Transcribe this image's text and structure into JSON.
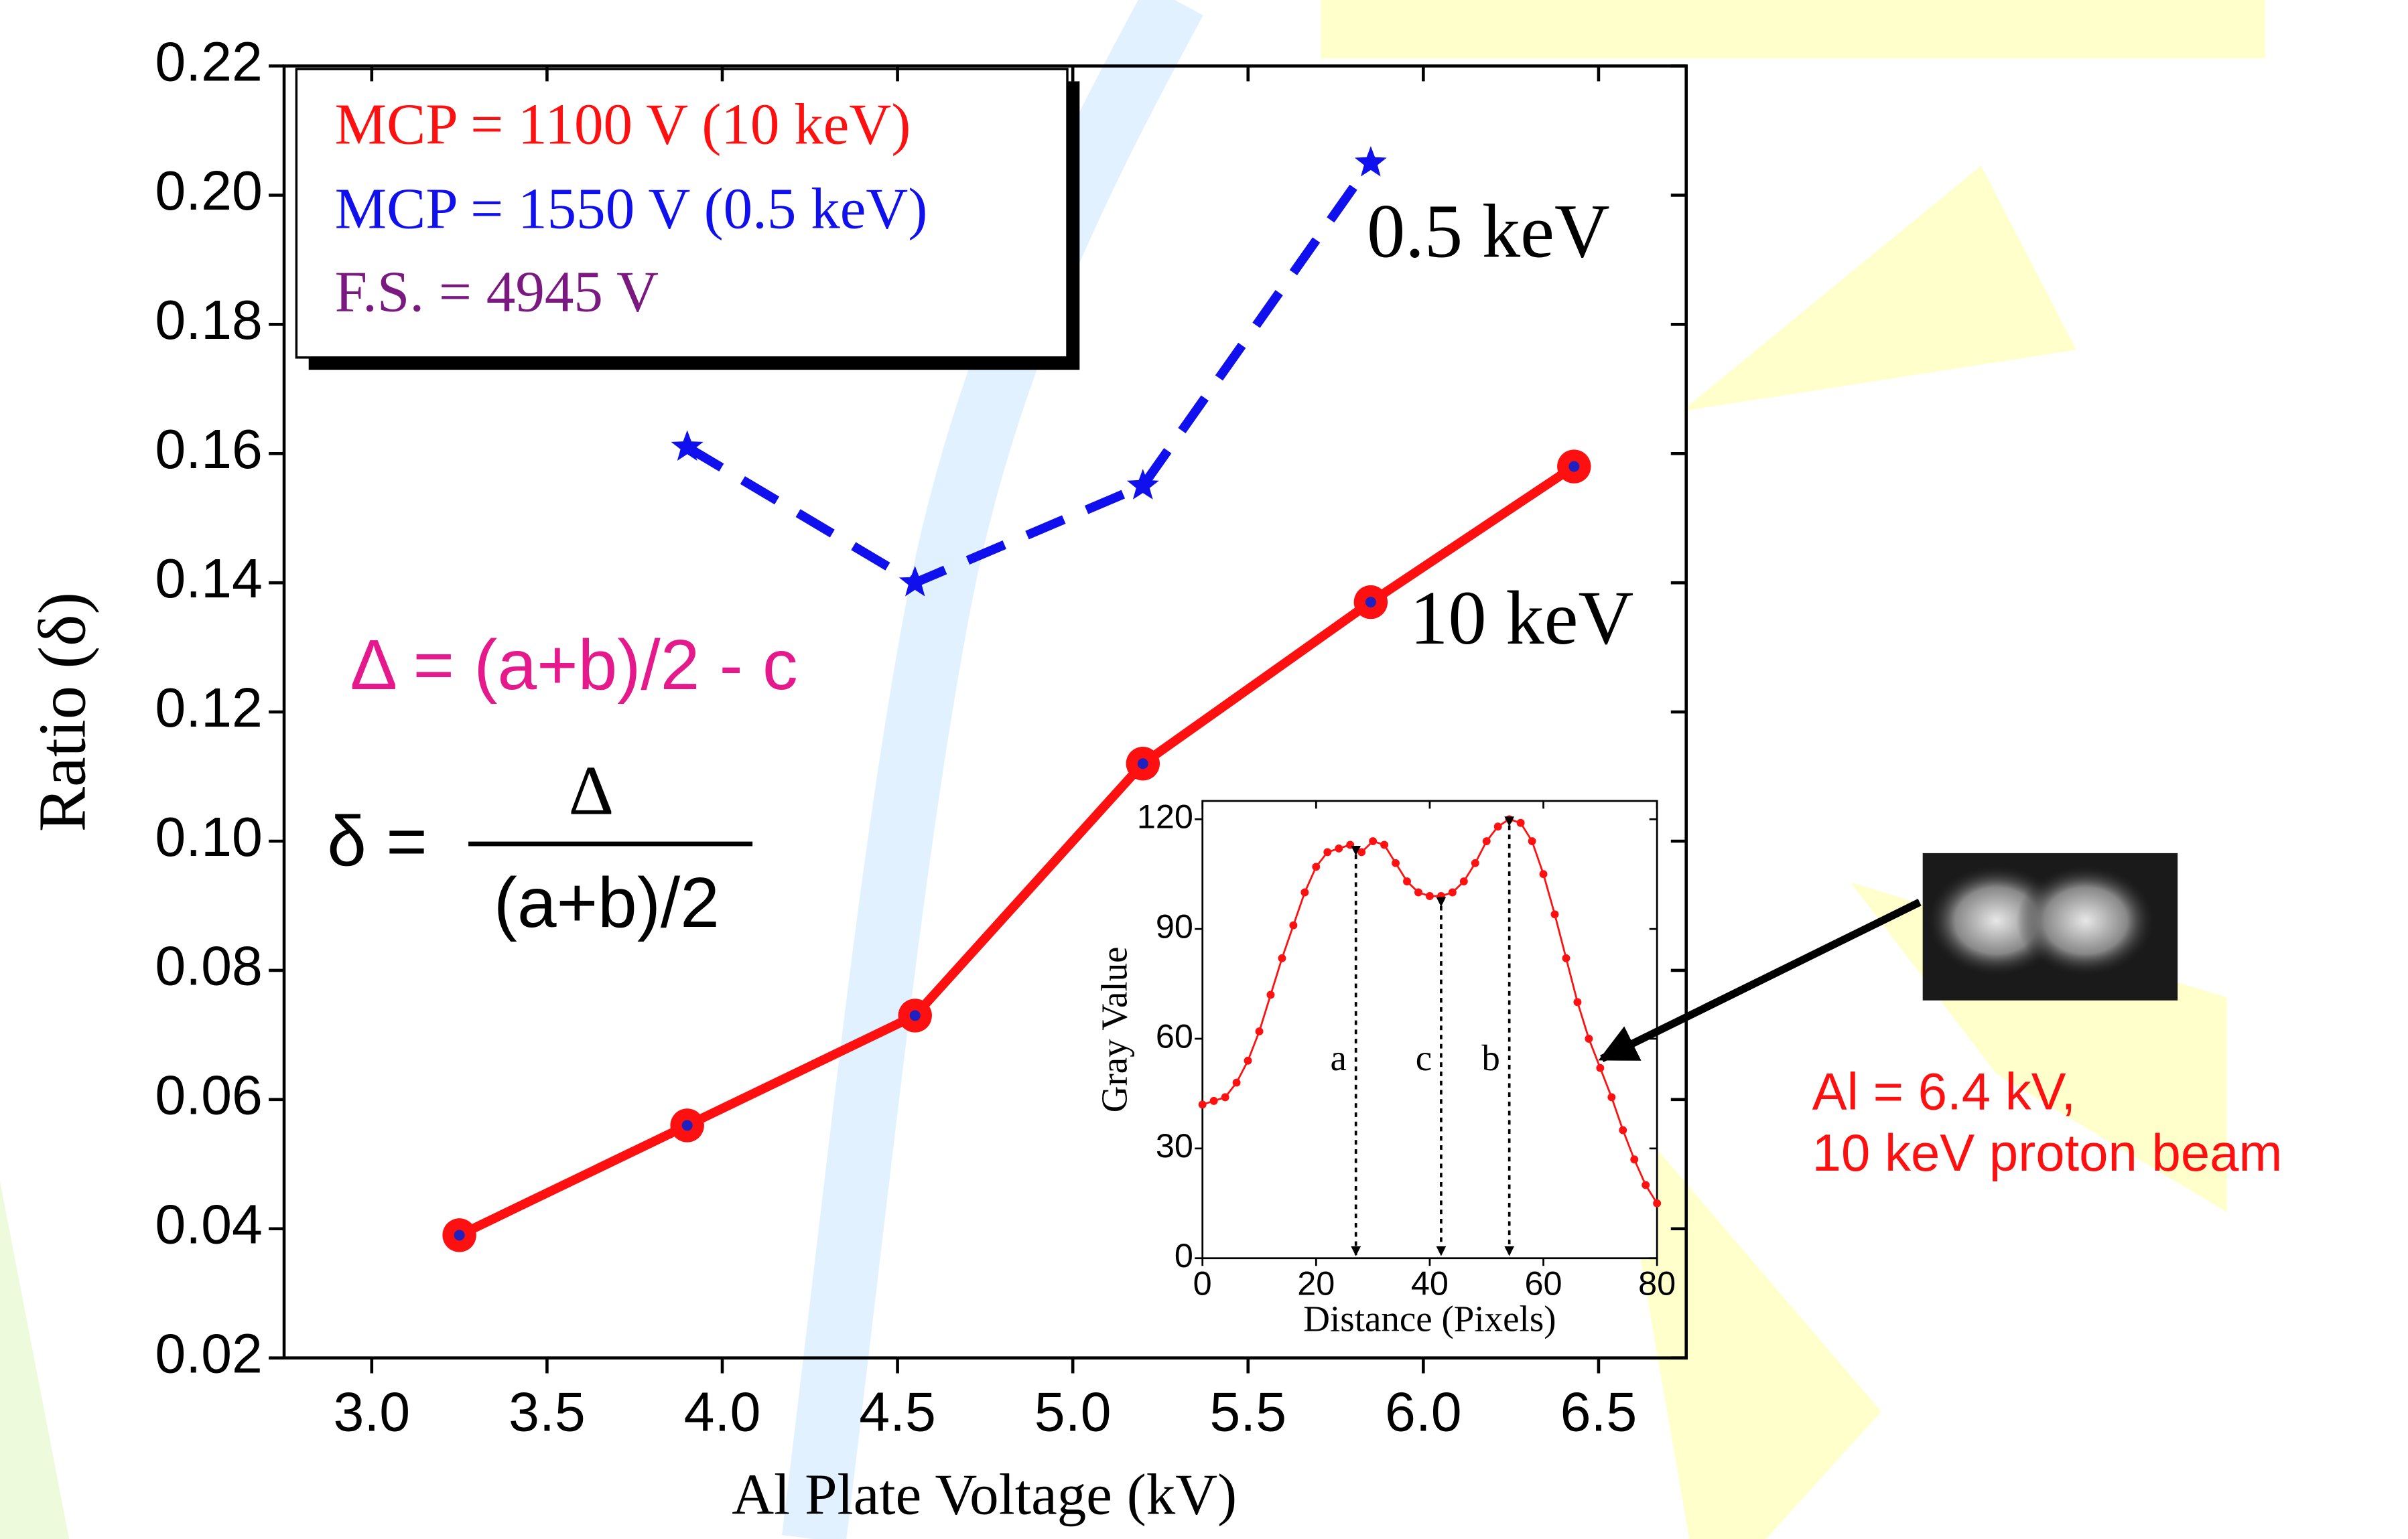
{
  "chart_data": [
    {
      "type": "line",
      "x_label": "Al Plate Voltage (kV)",
      "y_label": "Ratio (δ)",
      "xlim": [
        2.75,
        6.75
      ],
      "xticks": [
        {
          "value": 3,
          "label": "3.0"
        },
        3.5,
        {
          "value": 4,
          "label": "4.0"
        },
        4.5,
        {
          "value": 5,
          "label": "5.0"
        },
        5.5,
        {
          "value": 6,
          "label": "6.0"
        },
        6.5
      ],
      "ylim": [
        0.02,
        0.22
      ],
      "yticks": [
        0.02,
        0.04,
        0.06,
        0.08,
        {
          "value": 0.1,
          "label": "0.10"
        },
        0.12,
        0.14,
        0.16,
        0.18,
        {
          "value": 0.2,
          "label": "0.20"
        },
        0.22
      ],
      "series": [
        {
          "name": "10 keV",
          "color": "#ff1010",
          "line_style": "solid",
          "marker": "circle",
          "x": [
            3.25,
            3.9,
            4.55,
            5.2,
            5.85,
            6.43
          ],
          "values": [
            0.039,
            0.056,
            0.073,
            0.112,
            0.137,
            0.158
          ]
        },
        {
          "name": "0.5 keV",
          "color": "#1010ee",
          "line_style": "dashed",
          "marker": "star",
          "x": [
            3.9,
            4.55,
            5.2,
            5.85
          ],
          "values": [
            0.161,
            0.14,
            0.155,
            0.205
          ]
        }
      ],
      "annotations": {
        "legend_lines": [
          "MCP = 1100 V (10 keV)",
          "MCP = 1550 V (0.5 keV)",
          "F.S. = 4945 V"
        ],
        "formula": "Δ = (a+b)/2 - c",
        "ratio_lhs": "δ =",
        "ratio_numerator": "Δ",
        "ratio_denominator": "(a+b)/2"
      }
    },
    {
      "type": "line",
      "x_label": "Distance (Pixels)",
      "y_label": "Gray Value",
      "xlim": [
        0,
        80
      ],
      "xticks": [
        0,
        20,
        40,
        60,
        80
      ],
      "ylim": [
        0,
        125
      ],
      "yticks": [
        0,
        30,
        60,
        90,
        120
      ],
      "x": [
        0,
        2,
        4,
        6,
        8,
        10,
        12,
        14,
        16,
        18,
        20,
        22,
        24,
        26,
        28,
        30,
        32,
        34,
        36,
        38,
        40,
        42,
        44,
        46,
        48,
        50,
        52,
        54,
        56,
        58,
        60,
        62,
        64,
        66,
        68,
        70,
        72,
        74,
        76,
        78,
        80
      ],
      "series": [
        {
          "color": "#ff1010",
          "marker": "circle",
          "values": [
            42,
            43,
            44,
            48,
            54,
            62,
            72,
            82,
            91,
            100,
            107,
            111,
            112,
            113,
            111,
            114,
            113,
            108,
            103,
            100,
            99,
            99,
            100,
            103,
            108,
            114,
            118,
            120,
            119,
            114,
            105,
            94,
            82,
            70,
            60,
            52,
            44,
            35,
            27,
            20,
            15
          ]
        }
      ],
      "arrows": [
        {
          "label": "a",
          "x": 27,
          "y": 112
        },
        {
          "label": "c",
          "x": 42,
          "y": 98
        },
        {
          "label": "b",
          "x": 54,
          "y": 120
        }
      ]
    }
  ],
  "side_note": [
    "Al = 6.4 kV,",
    "10 keV proton beam"
  ]
}
